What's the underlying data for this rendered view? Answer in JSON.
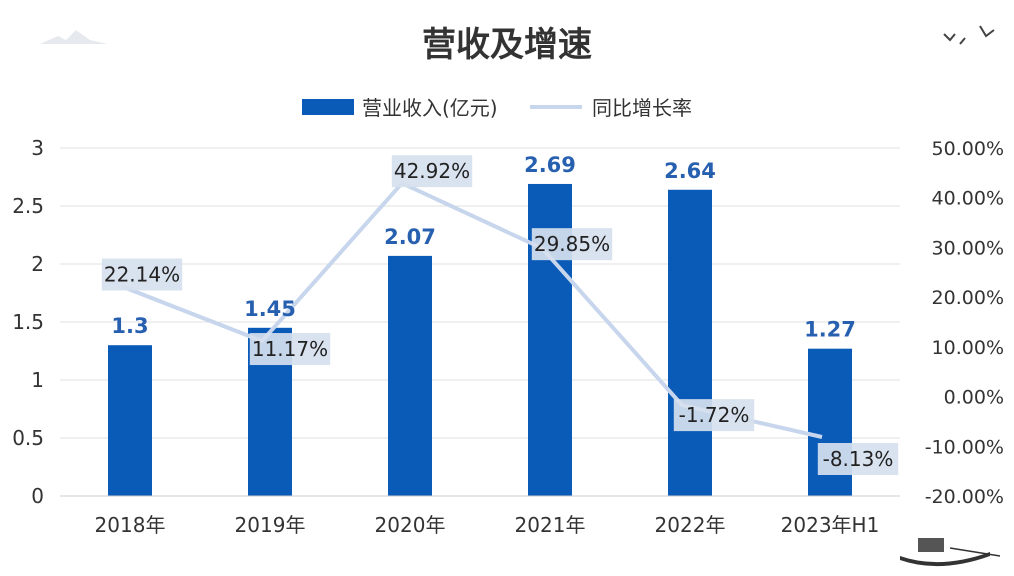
{
  "chart_data": {
    "type": "bar",
    "title": "营收及增速",
    "categories": [
      "2018年",
      "2019年",
      "2020年",
      "2021年",
      "2022年",
      "2023年H1"
    ],
    "series": [
      {
        "name": "营业收入(亿元)",
        "type": "bar",
        "axis": "left",
        "values": [
          1.3,
          1.45,
          2.07,
          2.69,
          2.64,
          1.27
        ],
        "labels": [
          "1.3",
          "1.45",
          "2.07",
          "2.69",
          "2.64",
          "1.27"
        ]
      },
      {
        "name": "同比增长率",
        "type": "line",
        "axis": "right",
        "values": [
          22.14,
          11.17,
          42.92,
          29.85,
          -1.72,
          -8.13
        ],
        "labels": [
          "22.14%",
          "11.17%",
          "42.92%",
          "29.85%",
          "-1.72%",
          "-8.13%"
        ]
      }
    ],
    "y_left": {
      "min": 0,
      "max": 3,
      "ticks": [
        "0",
        "0.5",
        "1",
        "1.5",
        "2",
        "2.5",
        "3"
      ]
    },
    "y_right": {
      "min": -20,
      "max": 50,
      "ticks": [
        "-20.00%",
        "-10.00%",
        "0.00%",
        "10.00%",
        "20.00%",
        "30.00%",
        "40.00%",
        "50.00%"
      ]
    },
    "grid": true,
    "legend": "top-center",
    "colors": {
      "bar": "#0a5ab8",
      "bar_label": "#2860b0",
      "line": "#c7d6ec",
      "label_box": "#d6e0ee",
      "text": "#333333",
      "grid": "#e1e1e1"
    }
  }
}
